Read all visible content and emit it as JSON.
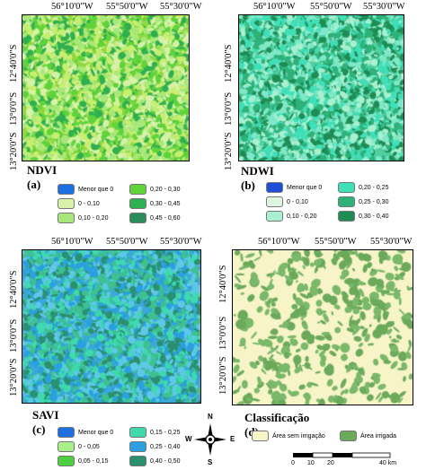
{
  "panels": {
    "a": {
      "title": "NDVI (a)",
      "x_ticks": [
        "56°10'0\"W",
        "55°50'0\"W",
        "55°30'0\"W"
      ],
      "y_ticks": [
        "12°40'0\"S",
        "13°0'0\"S",
        "13°20'0\"S"
      ],
      "legend": [
        {
          "label": "Menor que 0",
          "color": "#1e6fe0"
        },
        {
          "label": "0,20 - 0,30",
          "color": "#5fd33a"
        },
        {
          "label": "0 - 0,10",
          "color": "#d7f2a8"
        },
        {
          "label": "0,30 - 0,45",
          "color": "#2fb050"
        },
        {
          "label": "0,10 - 0,20",
          "color": "#a8e87a"
        },
        {
          "label": "0,45 - 0,60",
          "color": "#2a8c5a"
        }
      ]
    },
    "b": {
      "title": "NDWI (b)",
      "x_ticks": [
        "56°10'0\"W",
        "55°50'0\"W",
        "55°30'0\"W"
      ],
      "y_ticks": [
        "12°40'0\"S",
        "13°0'0\"S",
        "13°20'0\"S"
      ],
      "legend": [
        {
          "label": "Menor que 0",
          "color": "#1f4fd6"
        },
        {
          "label": "0,20 - 0,25",
          "color": "#3fe0b8"
        },
        {
          "label": "0 - 0,10",
          "color": "#dff5e0"
        },
        {
          "label": "0,25 - 0,30",
          "color": "#2fb27a"
        },
        {
          "label": "0,10 - 0,20",
          "color": "#a8f0d0"
        },
        {
          "label": "0,30 - 0,40",
          "color": "#1f8c55"
        }
      ]
    },
    "c": {
      "title": "SAVI (c)",
      "x_ticks": [
        "56°10'0\"W",
        "55°50'0\"W",
        "55°30'0\"W"
      ],
      "y_ticks": [
        "12°40'0\"S",
        "13°0'0\"S",
        "13°20'0\"S"
      ],
      "legend": [
        {
          "label": "Menor que 0",
          "color": "#1e6fe0"
        },
        {
          "label": "0,15 - 0,25",
          "color": "#3fd9b0"
        },
        {
          "label": "0 - 0,05",
          "color": "#a8f08a"
        },
        {
          "label": "0,25 - 0,40",
          "color": "#2aa0e0"
        },
        {
          "label": "0,05 - 0,15",
          "color": "#4cd040"
        },
        {
          "label": "0,40 - 0,50",
          "color": "#2a9070"
        }
      ]
    },
    "d": {
      "title": "Classificação (d)",
      "x_ticks": [
        "56°10'0\"W",
        "55°50'0\"W",
        "55°30'0\"W"
      ],
      "y_ticks": [
        "12°40'0\"S",
        "13°0'0\"S",
        "13°20'0\"S"
      ],
      "legend": [
        {
          "label": "Área sem irrigação",
          "color": "#f7f4c8"
        },
        {
          "label": "Área irrigada",
          "color": "#6aaa5a"
        }
      ]
    }
  },
  "compass": {
    "n": "N",
    "s": "S",
    "e": "E",
    "w": "W"
  },
  "scale": {
    "ticks": [
      "0",
      "10",
      "20",
      "40 km"
    ]
  },
  "colors": {
    "ndvi_base": "#8fd840",
    "ndwi_base": "#4fcfa0",
    "savi_base": "#3aa8d8",
    "class_base": "#f7f4c8"
  }
}
